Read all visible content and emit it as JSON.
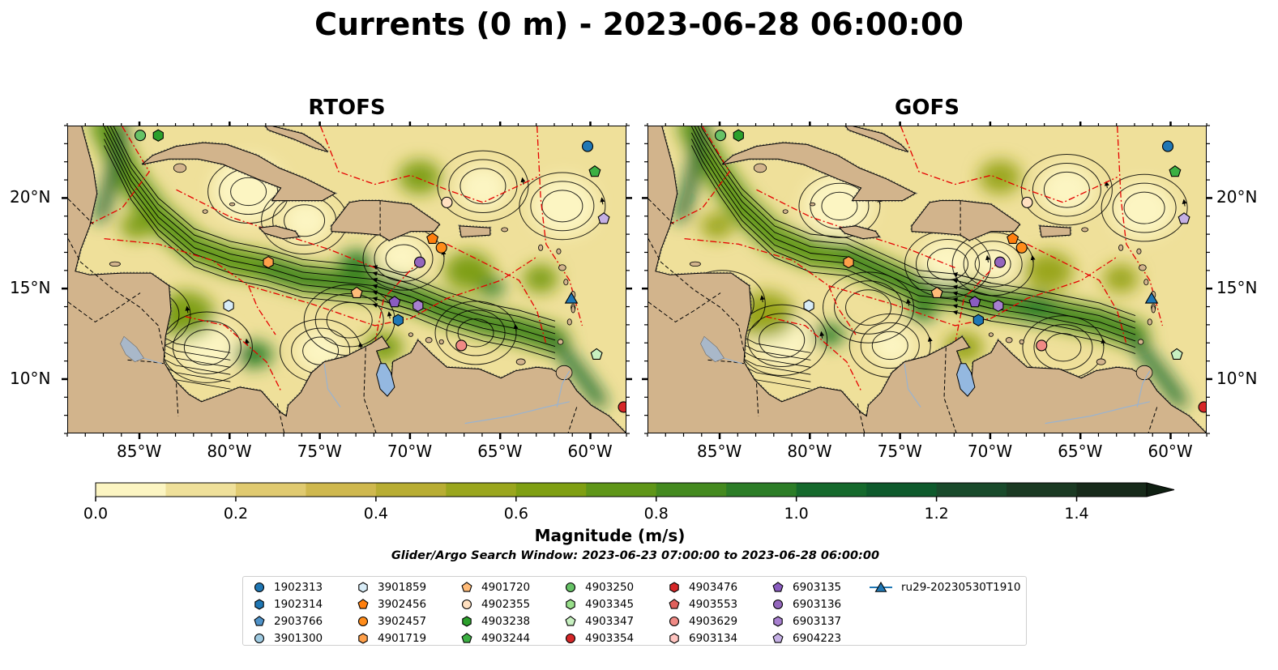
{
  "title": "Currents (0 m) - 2023-06-28 06:00:00",
  "panels": [
    {
      "name": "RTOFS"
    },
    {
      "name": "GOFS"
    }
  ],
  "map": {
    "lon_range": [
      -89,
      -58
    ],
    "lat_range": [
      7,
      24
    ],
    "x_ticks": [
      "85°W",
      "80°W",
      "75°W",
      "70°W",
      "65°W",
      "60°W"
    ],
    "y_ticks": [
      "20°N",
      "15°N",
      "10°N"
    ],
    "land_color": "#d2b48c",
    "lake_color": "#94b8e0"
  },
  "colorbar": {
    "label": "Magnitude (m/s)",
    "ticks": [
      "0.0",
      "0.2",
      "0.4",
      "0.6",
      "0.8",
      "1.0",
      "1.2",
      "1.4"
    ],
    "range": [
      0,
      1.5
    ],
    "colors": [
      "#fcf5c2",
      "#efe09a",
      "#e0ca70",
      "#cfb84e",
      "#b8ad33",
      "#9aa61d",
      "#7f9f12",
      "#5f9618",
      "#448a1f",
      "#2c7d27",
      "#15692c",
      "#0e5a2c",
      "#194a2b",
      "#1b3a23",
      "#172a1a"
    ]
  },
  "search_window": "Glider/Argo Search Window: 2023-06-23 07:00:00 to 2023-06-28 06:00:00",
  "legend": [
    {
      "label": "1902313",
      "color": "#1f77b4",
      "marker": "circle"
    },
    {
      "label": "1902314",
      "color": "#1f77b4",
      "marker": "hexagon"
    },
    {
      "label": "2903766",
      "color": "#4f92c8",
      "marker": "pentagon"
    },
    {
      "label": "3901300",
      "color": "#9ecae1",
      "marker": "circle"
    },
    {
      "label": "3901859",
      "color": "#d8ecf7",
      "marker": "hexagon"
    },
    {
      "label": "3902456",
      "color": "#ff7f0e",
      "marker": "pentagon"
    },
    {
      "label": "3902457",
      "color": "#ff8c1a",
      "marker": "circle"
    },
    {
      "label": "4901719",
      "color": "#ffa04a",
      "marker": "hexagon"
    },
    {
      "label": "4901720",
      "color": "#ffbb78",
      "marker": "pentagon"
    },
    {
      "label": "4902355",
      "color": "#ffe0c0",
      "marker": "circle"
    },
    {
      "label": "4903238",
      "color": "#2ca02c",
      "marker": "hexagon"
    },
    {
      "label": "4903244",
      "color": "#3cb043",
      "marker": "pentagon"
    },
    {
      "label": "4903250",
      "color": "#66c266",
      "marker": "circle"
    },
    {
      "label": "4903345",
      "color": "#98df8a",
      "marker": "hexagon"
    },
    {
      "label": "4903347",
      "color": "#c7f0c0",
      "marker": "pentagon"
    },
    {
      "label": "4903354",
      "color": "#d62728",
      "marker": "circle"
    },
    {
      "label": "4903476",
      "color": "#d62728",
      "marker": "hexagon"
    },
    {
      "label": "4903553",
      "color": "#e0605c",
      "marker": "pentagon"
    },
    {
      "label": "4903629",
      "color": "#f08a85",
      "marker": "circle"
    },
    {
      "label": "6903134",
      "color": "#ffc4c0",
      "marker": "hexagon"
    },
    {
      "label": "6903135",
      "color": "#8a5cc0",
      "marker": "pentagon"
    },
    {
      "label": "6903136",
      "color": "#9467bd",
      "marker": "circle"
    },
    {
      "label": "6903137",
      "color": "#a880d0",
      "marker": "hexagon"
    },
    {
      "label": "6904223",
      "color": "#c5b0e5",
      "marker": "pentagon"
    },
    {
      "label": "ru29-20230530T1910",
      "color": "#1f77b4",
      "marker": "triangle-line"
    }
  ],
  "floats": [
    {
      "id": "1902313",
      "lon": -60.2,
      "lat": 22.9
    },
    {
      "id": "4903244",
      "lon": -59.8,
      "lat": 21.5
    },
    {
      "id": "6904223",
      "lon": -59.3,
      "lat": 18.9
    },
    {
      "id": "4903250",
      "lon": -85.0,
      "lat": 23.5
    },
    {
      "id": "4903238",
      "lon": -84.0,
      "lat": 23.5
    },
    {
      "id": "4902355",
      "lon": -68.0,
      "lat": 19.8
    },
    {
      "id": "3902456",
      "lon": -68.8,
      "lat": 17.8
    },
    {
      "id": "3902457",
      "lon": -68.3,
      "lat": 17.3
    },
    {
      "id": "4901719",
      "lon": -77.9,
      "lat": 16.5
    },
    {
      "id": "6903136",
      "lon": -69.5,
      "lat": 16.5
    },
    {
      "id": "4901720",
      "lon": -73.0,
      "lat": 14.8
    },
    {
      "id": "6903135",
      "lon": -70.9,
      "lat": 14.3
    },
    {
      "id": "6903137",
      "lon": -69.6,
      "lat": 14.1
    },
    {
      "id": "1902314",
      "lon": -70.7,
      "lat": 13.3
    },
    {
      "id": "3901859",
      "lon": -80.1,
      "lat": 14.1
    },
    {
      "id": "ru29-20230530T1910",
      "lon": -61.1,
      "lat": 14.5
    },
    {
      "id": "4903629",
      "lon": -67.2,
      "lat": 11.9
    },
    {
      "id": "4903347",
      "lon": -59.7,
      "lat": 11.4
    },
    {
      "id": "4903354",
      "lon": -58.2,
      "lat": 8.5
    }
  ]
}
